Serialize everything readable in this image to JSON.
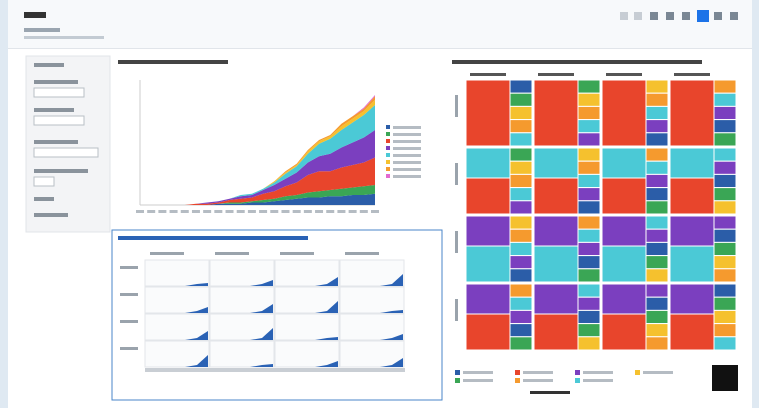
{
  "chart_data": {
    "type": "area",
    "categories": [
      null,
      null,
      null,
      null,
      null,
      null,
      null,
      null,
      null,
      null,
      null,
      null,
      null,
      null,
      null,
      null,
      null,
      null,
      null,
      null,
      null,
      null
    ],
    "ylim": [
      0,
      100
    ],
    "series": [
      {
        "color": "#2b5da8",
        "values": [
          0,
          0,
          0,
          0,
          0,
          0,
          0,
          1,
          1,
          1,
          2,
          2,
          3,
          4,
          5,
          6,
          6,
          7,
          7,
          8,
          8,
          9
        ]
      },
      {
        "color": "#3aa655",
        "values": [
          0,
          0,
          0,
          0,
          0,
          0,
          0,
          0,
          1,
          1,
          1,
          2,
          2,
          3,
          3,
          4,
          5,
          5,
          6,
          6,
          7,
          7
        ]
      },
      {
        "color": "#e8452c",
        "values": [
          0,
          0,
          0,
          0,
          0,
          1,
          1,
          1,
          2,
          3,
          3,
          5,
          6,
          8,
          10,
          14,
          16,
          15,
          17,
          18,
          19,
          22
        ]
      },
      {
        "color": "#7b3fbf",
        "values": [
          0,
          0,
          0,
          0,
          0,
          0,
          1,
          1,
          1,
          2,
          2,
          3,
          5,
          6,
          8,
          10,
          12,
          14,
          16,
          18,
          20,
          22
        ]
      },
      {
        "color": "#4bc9d6",
        "values": [
          0,
          0,
          0,
          0,
          0,
          0,
          0,
          0,
          0,
          1,
          1,
          1,
          2,
          4,
          5,
          7,
          10,
          12,
          14,
          16,
          18,
          20
        ]
      },
      {
        "color": "#f5c12e",
        "values": [
          0,
          0,
          0,
          0,
          0,
          0,
          0,
          0,
          0,
          0,
          0,
          0,
          1,
          1,
          1,
          2,
          2,
          2,
          3,
          3,
          3,
          4
        ]
      },
      {
        "color": "#f59a2e",
        "values": [
          0,
          0,
          0,
          0,
          0,
          0,
          0,
          0,
          0,
          0,
          0,
          0,
          0,
          1,
          1,
          1,
          1,
          1,
          2,
          2,
          2,
          3
        ]
      },
      {
        "color": "#e36ad1",
        "values": [
          0,
          0,
          0,
          0,
          0,
          0,
          0,
          0,
          0,
          0,
          0,
          0,
          0,
          0,
          0,
          0,
          0,
          0,
          0,
          0,
          1,
          1
        ]
      }
    ]
  }
}
